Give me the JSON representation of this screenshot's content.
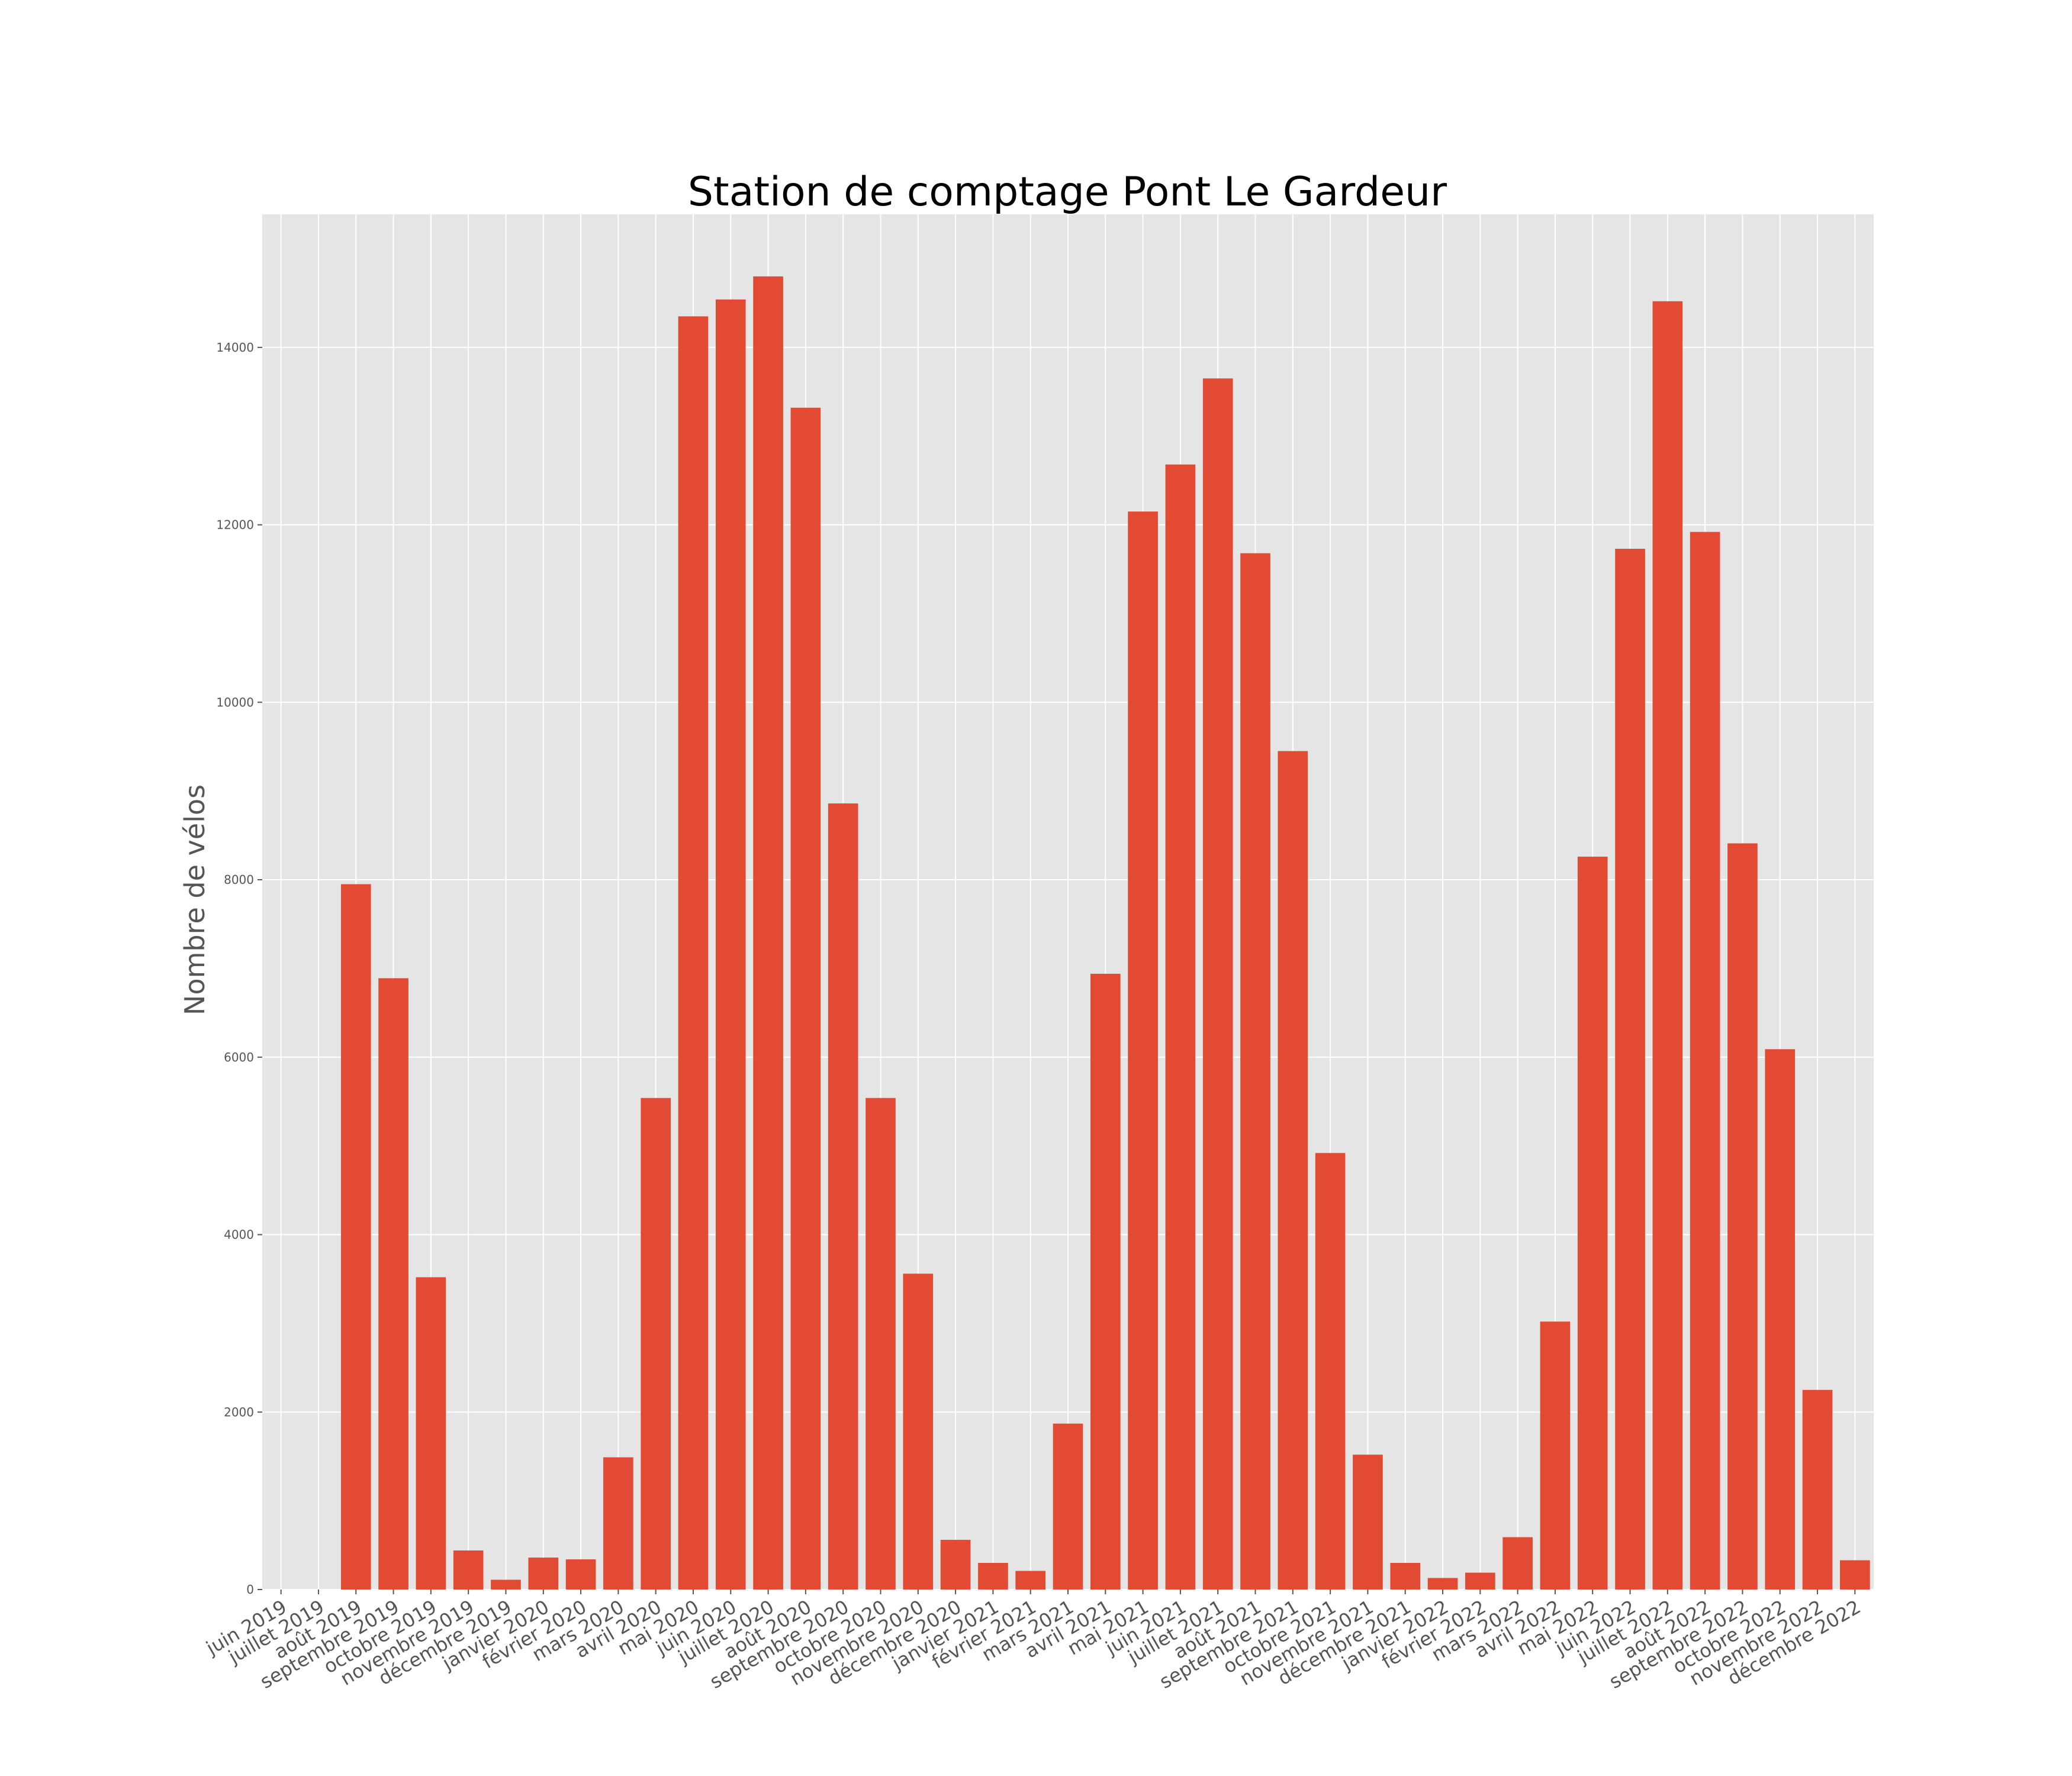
{
  "chart_data": {
    "type": "bar",
    "title": "Station de comptage Pont Le Gardeur",
    "xlabel": "",
    "ylabel": "Nombre de vélos",
    "ylim": [
      0,
      15500
    ],
    "yticks": [
      0,
      2000,
      4000,
      6000,
      8000,
      10000,
      12000,
      14000
    ],
    "grid": true,
    "legend": "none",
    "colors": {
      "bar": "#E24A33",
      "background": "#E5E5E5",
      "grid": "#FFFFFF"
    },
    "categories": [
      "juin 2019",
      "juillet 2019",
      "août 2019",
      "septembre 2019",
      "octobre 2019",
      "novembre 2019",
      "décembre 2019",
      "janvier 2020",
      "février 2020",
      "mars 2020",
      "avril 2020",
      "mai 2020",
      "juin 2020",
      "juillet 2020",
      "août 2020",
      "septembre 2020",
      "octobre 2020",
      "novembre 2020",
      "décembre 2020",
      "janvier 2021",
      "février 2021",
      "mars 2021",
      "avril 2021",
      "mai 2021",
      "juin 2021",
      "juillet 2021",
      "août 2021",
      "septembre 2021",
      "octobre 2021",
      "novembre 2021",
      "décembre 2021",
      "janvier 2022",
      "février 2022",
      "mars 2022",
      "avril 2022",
      "mai 2022",
      "juin 2022",
      "juillet 2022",
      "août 2022",
      "septembre 2022",
      "octobre 2022",
      "novembre 2022",
      "décembre 2022"
    ],
    "values": [
      0,
      0,
      7950,
      6890,
      3520,
      440,
      110,
      360,
      340,
      1490,
      5540,
      14350,
      14540,
      14800,
      13320,
      8860,
      5540,
      3560,
      560,
      300,
      210,
      1870,
      6940,
      12150,
      12680,
      13650,
      11680,
      9450,
      4920,
      1520,
      300,
      130,
      190,
      590,
      3020,
      8260,
      11730,
      14520,
      11920,
      8410,
      6090,
      2250,
      330
    ]
  }
}
